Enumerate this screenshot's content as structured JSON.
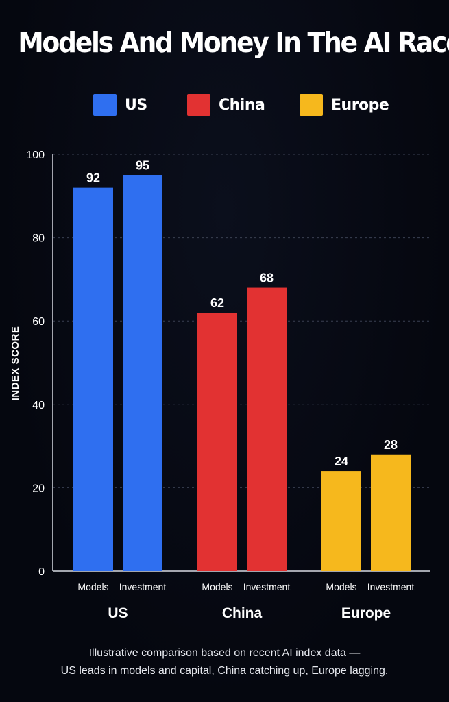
{
  "title": "Models And Money In The AI Race",
  "legend": [
    {
      "label": "US",
      "color": "#2f6ff0"
    },
    {
      "label": "China",
      "color": "#e23232"
    },
    {
      "label": "Europe",
      "color": "#f6b81d"
    }
  ],
  "chart_data": {
    "type": "bar",
    "title": "Models And Money In The AI Race",
    "ylabel": "INDEX SCORE",
    "xlabel": "",
    "ylim": [
      0,
      100
    ],
    "yticks": [
      0,
      20,
      40,
      60,
      80,
      100
    ],
    "grid": true,
    "legend_position": "top",
    "groups": [
      {
        "name": "US",
        "color": "#2f6ff0",
        "bars": [
          {
            "label": "Models",
            "value": 92
          },
          {
            "label": "Investment",
            "value": 95
          }
        ]
      },
      {
        "name": "China",
        "color": "#e23232",
        "bars": [
          {
            "label": "Models",
            "value": 62
          },
          {
            "label": "Investment",
            "value": 68
          }
        ]
      },
      {
        "name": "Europe",
        "color": "#f6b81d",
        "bars": [
          {
            "label": "Models",
            "value": 24
          },
          {
            "label": "Investment",
            "value": 28
          }
        ]
      }
    ]
  },
  "caption": {
    "line1": "Illustrative comparison based on recent AI index data —",
    "line2": "US leads in models and capital, China catching up, Europe lagging."
  }
}
